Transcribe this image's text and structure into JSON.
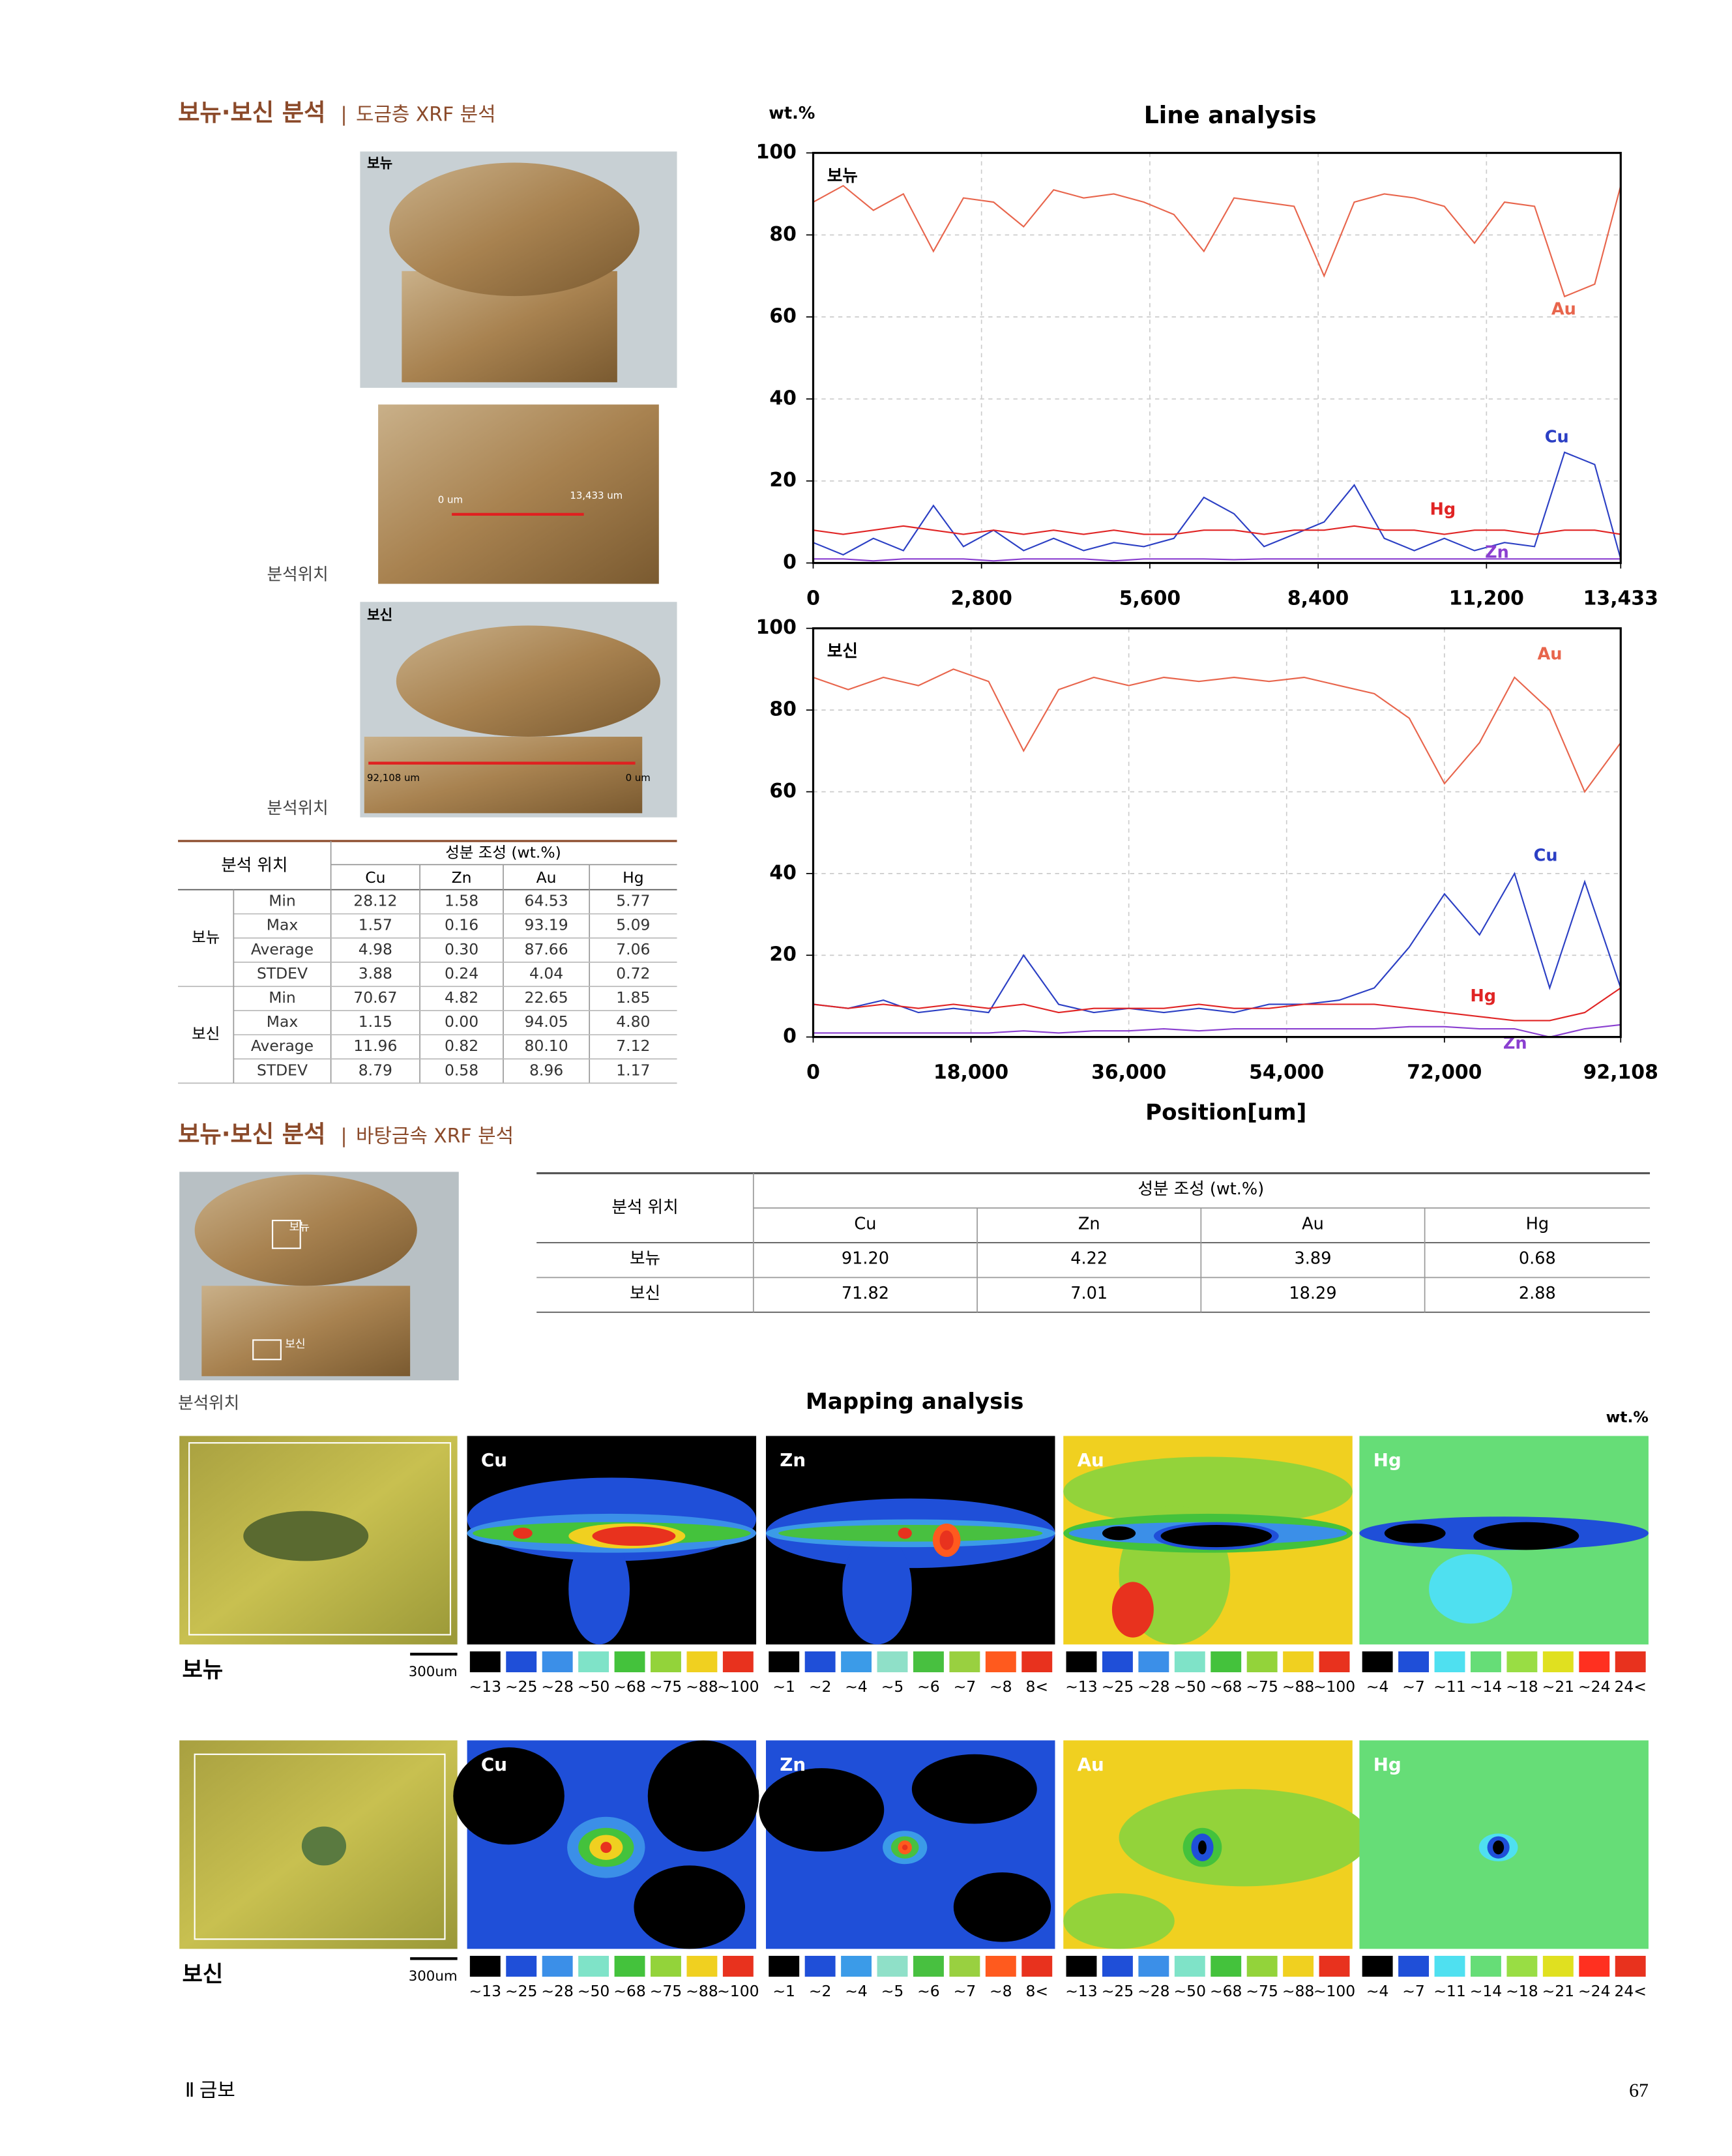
{
  "section1": {
    "title": "보뉴·보신 분석",
    "subtitle": "도금층 XRF 분석"
  },
  "photos1": {
    "top_label": "보뉴",
    "detail_start": "0 um",
    "detail_end": "13,433 um",
    "position_label": "분석위치",
    "bottom_label": "보신",
    "bottom_start": "92,108 um",
    "bottom_end": "0 um",
    "position_label_2": "분석위치"
  },
  "table1": {
    "header": "분석 위치",
    "group_header": "성분 조성 (wt.%)",
    "columns": [
      "Cu",
      "Zn",
      "Au",
      "Hg"
    ],
    "groups": [
      {
        "name": "보뉴",
        "rows": [
          {
            "stat": "Min",
            "values": [
              "28.12",
              "1.58",
              "64.53",
              "5.77"
            ]
          },
          {
            "stat": "Max",
            "values": [
              "1.57",
              "0.16",
              "93.19",
              "5.09"
            ]
          },
          {
            "stat": "Average",
            "values": [
              "4.98",
              "0.30",
              "87.66",
              "7.06"
            ]
          },
          {
            "stat": "STDEV",
            "values": [
              "3.88",
              "0.24",
              "4.04",
              "0.72"
            ]
          }
        ]
      },
      {
        "name": "보신",
        "rows": [
          {
            "stat": "Min",
            "values": [
              "70.67",
              "4.82",
              "22.65",
              "1.85"
            ]
          },
          {
            "stat": "Max",
            "values": [
              "1.15",
              "0.00",
              "94.05",
              "4.80"
            ]
          },
          {
            "stat": "Average",
            "values": [
              "11.96",
              "0.82",
              "80.10",
              "7.12"
            ]
          },
          {
            "stat": "STDEV",
            "values": [
              "8.79",
              "0.58",
              "8.96",
              "1.17"
            ]
          }
        ]
      }
    ]
  },
  "chart_data": [
    {
      "type": "line",
      "title": "Line analysis",
      "ylabel": "wt.%",
      "panel_label": "보뉴",
      "grid": true,
      "xlim": [
        0,
        13433
      ],
      "xticks": [
        0,
        {
          "value": 2800,
          "label": "2,800"
        },
        {
          "value": 5600,
          "label": "5,600"
        },
        {
          "value": 8400,
          "label": "8,400"
        },
        {
          "value": 11200,
          "label": "11,200"
        },
        {
          "value": 13433,
          "label": "13,433"
        }
      ],
      "ylim": [
        0,
        100
      ],
      "yticks": [
        0,
        20,
        40,
        60,
        80,
        100
      ],
      "x": [
        0,
        500,
        1000,
        1500,
        2000,
        2500,
        3000,
        3500,
        4000,
        4500,
        5000,
        5500,
        6000,
        6500,
        7000,
        7500,
        8000,
        8500,
        9000,
        9500,
        10000,
        10500,
        11000,
        11500,
        12000,
        12500,
        13000,
        13433
      ],
      "series": [
        {
          "name": "Au",
          "color": "#e8654c",
          "values": [
            88,
            92,
            86,
            90,
            76,
            89,
            88,
            82,
            91,
            89,
            90,
            88,
            85,
            76,
            89,
            88,
            87,
            70,
            88,
            90,
            89,
            87,
            78,
            88,
            87,
            65,
            68,
            92
          ]
        },
        {
          "name": "Cu",
          "color": "#2b3fc4",
          "values": [
            5,
            2,
            6,
            3,
            14,
            4,
            8,
            3,
            6,
            3,
            5,
            4,
            6,
            16,
            12,
            4,
            7,
            10,
            19,
            6,
            3,
            6,
            3,
            5,
            4,
            27,
            24,
            1
          ]
        },
        {
          "name": "Hg",
          "color": "#e02424",
          "values": [
            8,
            7,
            8,
            9,
            8,
            7,
            8,
            7,
            8,
            7,
            8,
            7,
            7,
            8,
            8,
            7,
            8,
            8,
            9,
            8,
            8,
            7,
            8,
            8,
            7,
            8,
            8,
            7
          ]
        },
        {
          "name": "Zn",
          "color": "#8a3fd0",
          "values": [
            1,
            1,
            0.5,
            1,
            1,
            1,
            0.5,
            1,
            1,
            1,
            0.5,
            1,
            1,
            1,
            0.8,
            1,
            1,
            1,
            1,
            1,
            1,
            1,
            1,
            1,
            1,
            1,
            1,
            1
          ]
        }
      ]
    },
    {
      "type": "line",
      "xlabel": "Position[um]",
      "panel_label": "보신",
      "grid": true,
      "xlim": [
        0,
        92108
      ],
      "xticks": [
        0,
        {
          "value": 18000,
          "label": "18,000"
        },
        {
          "value": 36000,
          "label": "36,000"
        },
        {
          "value": 54000,
          "label": "54,000"
        },
        {
          "value": 72000,
          "label": "72,000"
        },
        {
          "value": 92108,
          "label": "92,108"
        }
      ],
      "ylim": [
        0,
        100
      ],
      "yticks": [
        0,
        20,
        40,
        60,
        80,
        100
      ],
      "x": [
        0,
        4000,
        8000,
        12000,
        16000,
        20000,
        24000,
        28000,
        32000,
        36000,
        40000,
        44000,
        48000,
        52000,
        56000,
        60000,
        64000,
        68000,
        72000,
        76000,
        80000,
        84000,
        88000,
        92108
      ],
      "series": [
        {
          "name": "Au",
          "color": "#e8654c",
          "values": [
            88,
            85,
            88,
            86,
            90,
            87,
            70,
            85,
            88,
            86,
            88,
            87,
            88,
            87,
            88,
            86,
            84,
            78,
            62,
            72,
            88,
            80,
            60,
            72
          ]
        },
        {
          "name": "Cu",
          "color": "#2b3fc4",
          "values": [
            8,
            7,
            9,
            6,
            7,
            6,
            20,
            8,
            6,
            7,
            6,
            7,
            6,
            8,
            8,
            9,
            12,
            22,
            35,
            25,
            40,
            12,
            38,
            12
          ]
        },
        {
          "name": "Hg",
          "color": "#e02424",
          "values": [
            8,
            7,
            8,
            7,
            8,
            7,
            8,
            6,
            7,
            7,
            7,
            8,
            7,
            7,
            8,
            8,
            8,
            7,
            6,
            5,
            4,
            4,
            6,
            12
          ]
        },
        {
          "name": "Zn",
          "color": "#8a3fd0",
          "values": [
            1,
            1,
            1,
            1,
            1,
            1,
            1.5,
            1,
            1.5,
            1.5,
            2,
            1.5,
            2,
            2,
            2,
            2,
            2,
            2.5,
            2.5,
            2,
            2,
            0,
            2,
            3
          ]
        }
      ]
    }
  ],
  "section2": {
    "title": "보뉴·보신 분석",
    "subtitle": "바탕금속 XRF 분석"
  },
  "photo2": {
    "label_bonyu": "보뉴",
    "label_bosin": "보신",
    "position_label": "분석위치"
  },
  "table2": {
    "header": "분석 위치",
    "group_header": "성분 조성 (wt.%)",
    "columns": [
      "Cu",
      "Zn",
      "Au",
      "Hg"
    ],
    "rows": [
      {
        "name": "보뉴",
        "values": [
          "91.20",
          "4.22",
          "3.89",
          "0.68"
        ]
      },
      {
        "name": "보신",
        "values": [
          "71.82",
          "7.01",
          "18.29",
          "2.88"
        ]
      }
    ]
  },
  "mapping": {
    "title": "Mapping analysis",
    "unit": "wt.%",
    "rows": [
      {
        "label": "보뉴",
        "scale": "300um"
      },
      {
        "label": "보신",
        "scale": "300um"
      }
    ],
    "elements": [
      {
        "name": "Cu",
        "legend": [
          "~13",
          "~25",
          "~28",
          "~50",
          "~68",
          "~75",
          "~88",
          "~100"
        ],
        "colors": [
          "#000000",
          "#1f4fd8",
          "#3b8fe8",
          "#7fe3c8",
          "#44c23c",
          "#93d33a",
          "#f0d020",
          "#e8321e"
        ]
      },
      {
        "name": "Zn",
        "legend": [
          "~1",
          "~2",
          "~4",
          "~5",
          "~6",
          "~7",
          "~8",
          "8<"
        ],
        "colors": [
          "#000000",
          "#1f4fd8",
          "#3b9be8",
          "#8fe0c8",
          "#48c040",
          "#99d040",
          "#ff5a1e",
          "#e8321e"
        ]
      },
      {
        "name": "Au",
        "legend": [
          "~13",
          "~25",
          "~28",
          "~50",
          "~68",
          "~75",
          "~88",
          "~100"
        ],
        "colors": [
          "#000000",
          "#1f4fd8",
          "#3b8fe8",
          "#7fe3c8",
          "#44c23c",
          "#93d33a",
          "#f0d020",
          "#e8321e"
        ]
      },
      {
        "name": "Hg",
        "legend": [
          "~4",
          "~7",
          "~11",
          "~14",
          "~18",
          "~21",
          "~24",
          "24<"
        ],
        "colors": [
          "#000000",
          "#1f4fd8",
          "#4fe0f0",
          "#66dd77",
          "#99dd44",
          "#e0e020",
          "#ff3020",
          "#e8321e"
        ]
      }
    ]
  },
  "footer": {
    "section": "Ⅱ 금보",
    "page": "67"
  }
}
